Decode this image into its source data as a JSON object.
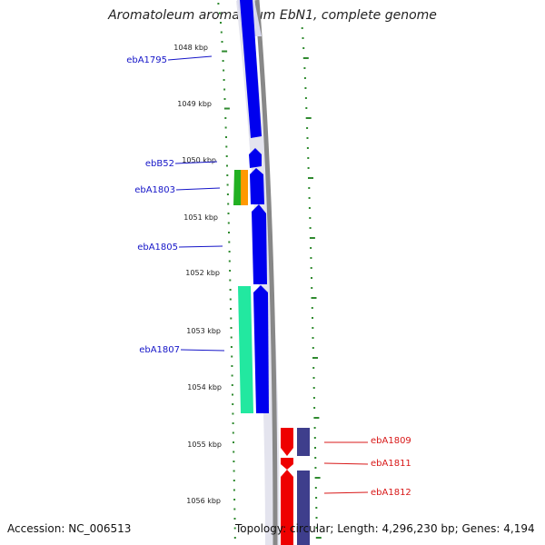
{
  "title": "Aromatoleum aromaticum EbN1, complete genome",
  "accession": "Accession: NC_006513",
  "summary": "Topology: circular; Length: 4,296,230 bp; Genes: 4,194",
  "colors": {
    "gene_label_left": "#1515c8",
    "gene_label_right": "#d81818",
    "tick": "#2f8a2f",
    "backbone": "#888888",
    "blue_cds": "#0000ee",
    "red_cds": "#ee0000",
    "slate_cds": "#3e3e8c",
    "mint_cds": "#22e8a0",
    "green_cds": "#22b022",
    "orange_cds": "#ff9900"
  },
  "ruler": [
    "1048 kbp",
    "1049 kbp",
    "1050 kbp",
    "1051 kbp",
    "1052 kbp",
    "1053 kbp",
    "1054 kbp",
    "1055 kbp",
    "1056 kbp"
  ],
  "genes_left": [
    "ebA1795",
    "ebB52",
    "ebA1803",
    "ebA1805",
    "ebA1807"
  ],
  "genes_right": [
    "ebA1809",
    "ebA1811",
    "ebA1812"
  ]
}
